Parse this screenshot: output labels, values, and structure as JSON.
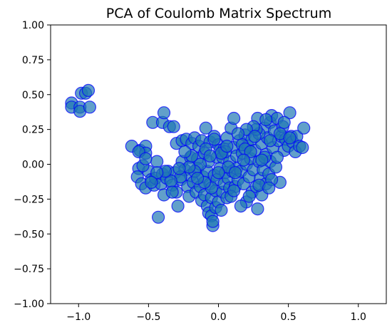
{
  "chart_data": {
    "type": "scatter",
    "title": "PCA of Coulomb Matrix Spectrum",
    "xlabel": "",
    "ylabel": "",
    "xlim": [
      -1.2,
      1.2
    ],
    "ylim": [
      -1.0,
      1.0
    ],
    "x_ticks": [
      -1.0,
      -0.5,
      0.0,
      0.5,
      1.0
    ],
    "x_tick_labels": [
      "−1.0",
      "−0.5",
      "0.0",
      "0.5",
      "1.0"
    ],
    "y_ticks": [
      1.0,
      0.75,
      0.5,
      0.25,
      0.0,
      -0.25,
      -0.5,
      -0.75,
      -1.0
    ],
    "y_tick_labels": [
      "1.00",
      "0.75",
      "0.50",
      "0.25",
      "0.00",
      "−0.25",
      "−0.50",
      "−0.75",
      "−1.00"
    ],
    "grid": false,
    "marker_face_color": "#1f77b4",
    "marker_edge_color": "#0000ff",
    "marker_alpha": 0.7,
    "points": [
      [
        -1.05,
        0.44
      ],
      [
        -1.05,
        0.41
      ],
      [
        -0.99,
        0.41
      ],
      [
        -0.99,
        0.38
      ],
      [
        -0.98,
        0.51
      ],
      [
        -0.95,
        0.51
      ],
      [
        -0.93,
        0.53
      ],
      [
        -0.92,
        0.41
      ],
      [
        -0.62,
        0.13
      ],
      [
        -0.56,
        0.1
      ],
      [
        -0.52,
        0.13
      ],
      [
        -0.52,
        0.08
      ],
      [
        -0.57,
        -0.03
      ],
      [
        -0.58,
        -0.09
      ],
      [
        -0.55,
        -0.14
      ],
      [
        -0.52,
        -0.17
      ],
      [
        -0.5,
        -0.05
      ],
      [
        -0.48,
        -0.11
      ],
      [
        -0.46,
        -0.15
      ],
      [
        -0.45,
        -0.1
      ],
      [
        -0.44,
        0.02
      ],
      [
        -0.43,
        -0.38
      ],
      [
        -0.41,
        -0.14
      ],
      [
        -0.4,
        -0.07
      ],
      [
        -0.39,
        -0.22
      ],
      [
        -0.37,
        -0.1
      ],
      [
        -0.36,
        -0.05
      ],
      [
        -0.47,
        0.3
      ],
      [
        -0.4,
        0.3
      ],
      [
        -0.39,
        0.37
      ],
      [
        -0.35,
        0.27
      ],
      [
        -0.32,
        0.27
      ],
      [
        -0.3,
        0.15
      ],
      [
        -0.33,
        -0.15
      ],
      [
        -0.31,
        -0.06
      ],
      [
        -0.3,
        -0.2
      ],
      [
        -0.29,
        -0.3
      ],
      [
        -0.27,
        -0.11
      ],
      [
        -0.26,
        0.17
      ],
      [
        -0.26,
        0.02
      ],
      [
        -0.24,
        -0.04
      ],
      [
        -0.23,
        0.18
      ],
      [
        -0.22,
        -0.16
      ],
      [
        -0.21,
        -0.23
      ],
      [
        -0.2,
        -0.08
      ],
      [
        -0.2,
        0.05
      ],
      [
        -0.19,
        0.15
      ],
      [
        -0.18,
        -0.13
      ],
      [
        -0.17,
        0.19
      ],
      [
        -0.16,
        -0.2
      ],
      [
        -0.15,
        0.04
      ],
      [
        -0.15,
        -0.03
      ],
      [
        -0.14,
        0.13
      ],
      [
        -0.13,
        -0.16
      ],
      [
        -0.12,
        -0.26
      ],
      [
        -0.12,
        0.17
      ],
      [
        -0.11,
        -0.09
      ],
      [
        -0.1,
        0.08
      ],
      [
        -0.1,
        -0.22
      ],
      [
        -0.09,
        0.26
      ],
      [
        -0.08,
        -0.3
      ],
      [
        -0.08,
        -0.05
      ],
      [
        -0.07,
        0.02
      ],
      [
        -0.07,
        -0.35
      ],
      [
        -0.06,
        -0.14
      ],
      [
        -0.06,
        0.16
      ],
      [
        -0.05,
        -0.24
      ],
      [
        -0.05,
        -0.37
      ],
      [
        -0.04,
        -0.44
      ],
      [
        -0.04,
        -0.41
      ],
      [
        -0.03,
        -0.08
      ],
      [
        -0.03,
        0.2
      ],
      [
        -0.02,
        -0.31
      ],
      [
        -0.02,
        -0.19
      ],
      [
        -0.01,
        0.05
      ],
      [
        -0.01,
        -0.11
      ],
      [
        0.0,
        0.14
      ],
      [
        0.0,
        -0.27
      ],
      [
        0.01,
        -0.03
      ],
      [
        0.01,
        0.1
      ],
      [
        0.02,
        -0.33
      ],
      [
        0.03,
        -0.2
      ],
      [
        0.03,
        0.05
      ],
      [
        0.04,
        -0.14
      ],
      [
        0.04,
        0.11
      ],
      [
        0.05,
        -0.06
      ],
      [
        0.06,
        0.19
      ],
      [
        0.06,
        -0.24
      ],
      [
        0.07,
        -0.1
      ],
      [
        0.08,
        0.02
      ],
      [
        0.08,
        -0.17
      ],
      [
        0.09,
        0.26
      ],
      [
        0.1,
        -0.05
      ],
      [
        0.11,
        0.33
      ],
      [
        0.11,
        0.12
      ],
      [
        0.12,
        -0.16
      ],
      [
        0.13,
        -0.03
      ],
      [
        0.13,
        0.06
      ],
      [
        0.14,
        -0.11
      ],
      [
        0.15,
        0.17
      ],
      [
        0.16,
        -0.05
      ],
      [
        0.17,
        0.08
      ],
      [
        0.18,
        -0.14
      ],
      [
        0.19,
        0.21
      ],
      [
        0.2,
        -0.27
      ],
      [
        0.2,
        0.0
      ],
      [
        0.21,
        0.13
      ],
      [
        0.22,
        -0.09
      ],
      [
        0.23,
        0.04
      ],
      [
        0.24,
        -0.2
      ],
      [
        0.24,
        0.18
      ],
      [
        0.25,
        -0.04
      ],
      [
        0.26,
        0.1
      ],
      [
        0.27,
        -0.16
      ],
      [
        0.28,
        0.33
      ],
      [
        0.28,
        -0.32
      ],
      [
        0.29,
        0.02
      ],
      [
        0.3,
        -0.1
      ],
      [
        0.31,
        0.15
      ],
      [
        0.31,
        -0.22
      ],
      [
        0.32,
        -0.04
      ],
      [
        0.33,
        0.26
      ],
      [
        0.34,
        0.07
      ],
      [
        0.34,
        -0.14
      ],
      [
        0.35,
        0.19
      ],
      [
        0.36,
        -0.07
      ],
      [
        0.37,
        0.3
      ],
      [
        0.37,
        0.02
      ],
      [
        0.38,
        0.35
      ],
      [
        0.39,
        0.12
      ],
      [
        0.4,
        0.24
      ],
      [
        0.41,
        -0.02
      ],
      [
        0.42,
        0.33
      ],
      [
        0.43,
        0.17
      ],
      [
        0.44,
        -0.13
      ],
      [
        0.45,
        0.2
      ],
      [
        0.46,
        0.27
      ],
      [
        0.47,
        0.1
      ],
      [
        0.48,
        0.18
      ],
      [
        0.5,
        0.13
      ],
      [
        0.51,
        0.37
      ],
      [
        0.52,
        0.2
      ],
      [
        0.53,
        0.16
      ],
      [
        0.55,
        0.09
      ],
      [
        0.56,
        0.2
      ],
      [
        0.58,
        0.13
      ],
      [
        0.61,
        0.26
      ],
      [
        0.6,
        0.12
      ],
      [
        0.37,
        0.17
      ],
      [
        0.34,
        0.32
      ],
      [
        0.29,
        0.22
      ],
      [
        0.27,
        0.25
      ],
      [
        0.25,
        0.27
      ],
      [
        0.2,
        0.25
      ],
      [
        0.17,
        0.14
      ],
      [
        0.14,
        0.22
      ],
      [
        0.09,
        -0.23
      ],
      [
        0.07,
        -0.02
      ],
      [
        0.05,
        0.09
      ],
      [
        0.02,
        0.08
      ],
      [
        -0.03,
        0.18
      ],
      [
        -0.09,
        0.11
      ],
      [
        -0.13,
        0.0
      ],
      [
        -0.17,
        -0.05
      ],
      [
        -0.21,
        -0.02
      ],
      [
        -0.27,
        -0.09
      ],
      [
        -0.34,
        -0.12
      ],
      [
        -0.38,
        -0.05
      ],
      [
        -0.44,
        -0.06
      ],
      [
        -0.48,
        -0.13
      ],
      [
        -0.54,
        -0.01
      ],
      [
        -0.57,
        0.09
      ],
      [
        -0.52,
        0.04
      ],
      [
        0.38,
        -0.11
      ],
      [
        0.29,
        -0.15
      ],
      [
        0.22,
        -0.23
      ],
      [
        0.16,
        -0.3
      ],
      [
        0.11,
        -0.19
      ],
      [
        0.19,
        0.11
      ],
      [
        0.26,
        0.2
      ],
      [
        0.33,
        0.05
      ],
      [
        0.36,
        -0.17
      ],
      [
        0.42,
        0.05
      ],
      [
        0.44,
        0.22
      ],
      [
        0.47,
        0.3
      ],
      [
        0.51,
        0.19
      ],
      [
        0.31,
        0.03
      ],
      [
        0.23,
        0.09
      ],
      [
        0.18,
        0.03
      ],
      [
        0.12,
        -0.06
      ],
      [
        0.0,
        -0.06
      ],
      [
        -0.05,
        -0.17
      ],
      [
        -0.1,
        -0.13
      ],
      [
        -0.15,
        -0.1
      ],
      [
        -0.19,
        0.06
      ],
      [
        -0.24,
        0.09
      ],
      [
        -0.28,
        -0.03
      ],
      [
        -0.33,
        -0.2
      ],
      [
        -0.06,
        0.06
      ],
      [
        0.06,
        0.13
      ]
    ]
  }
}
